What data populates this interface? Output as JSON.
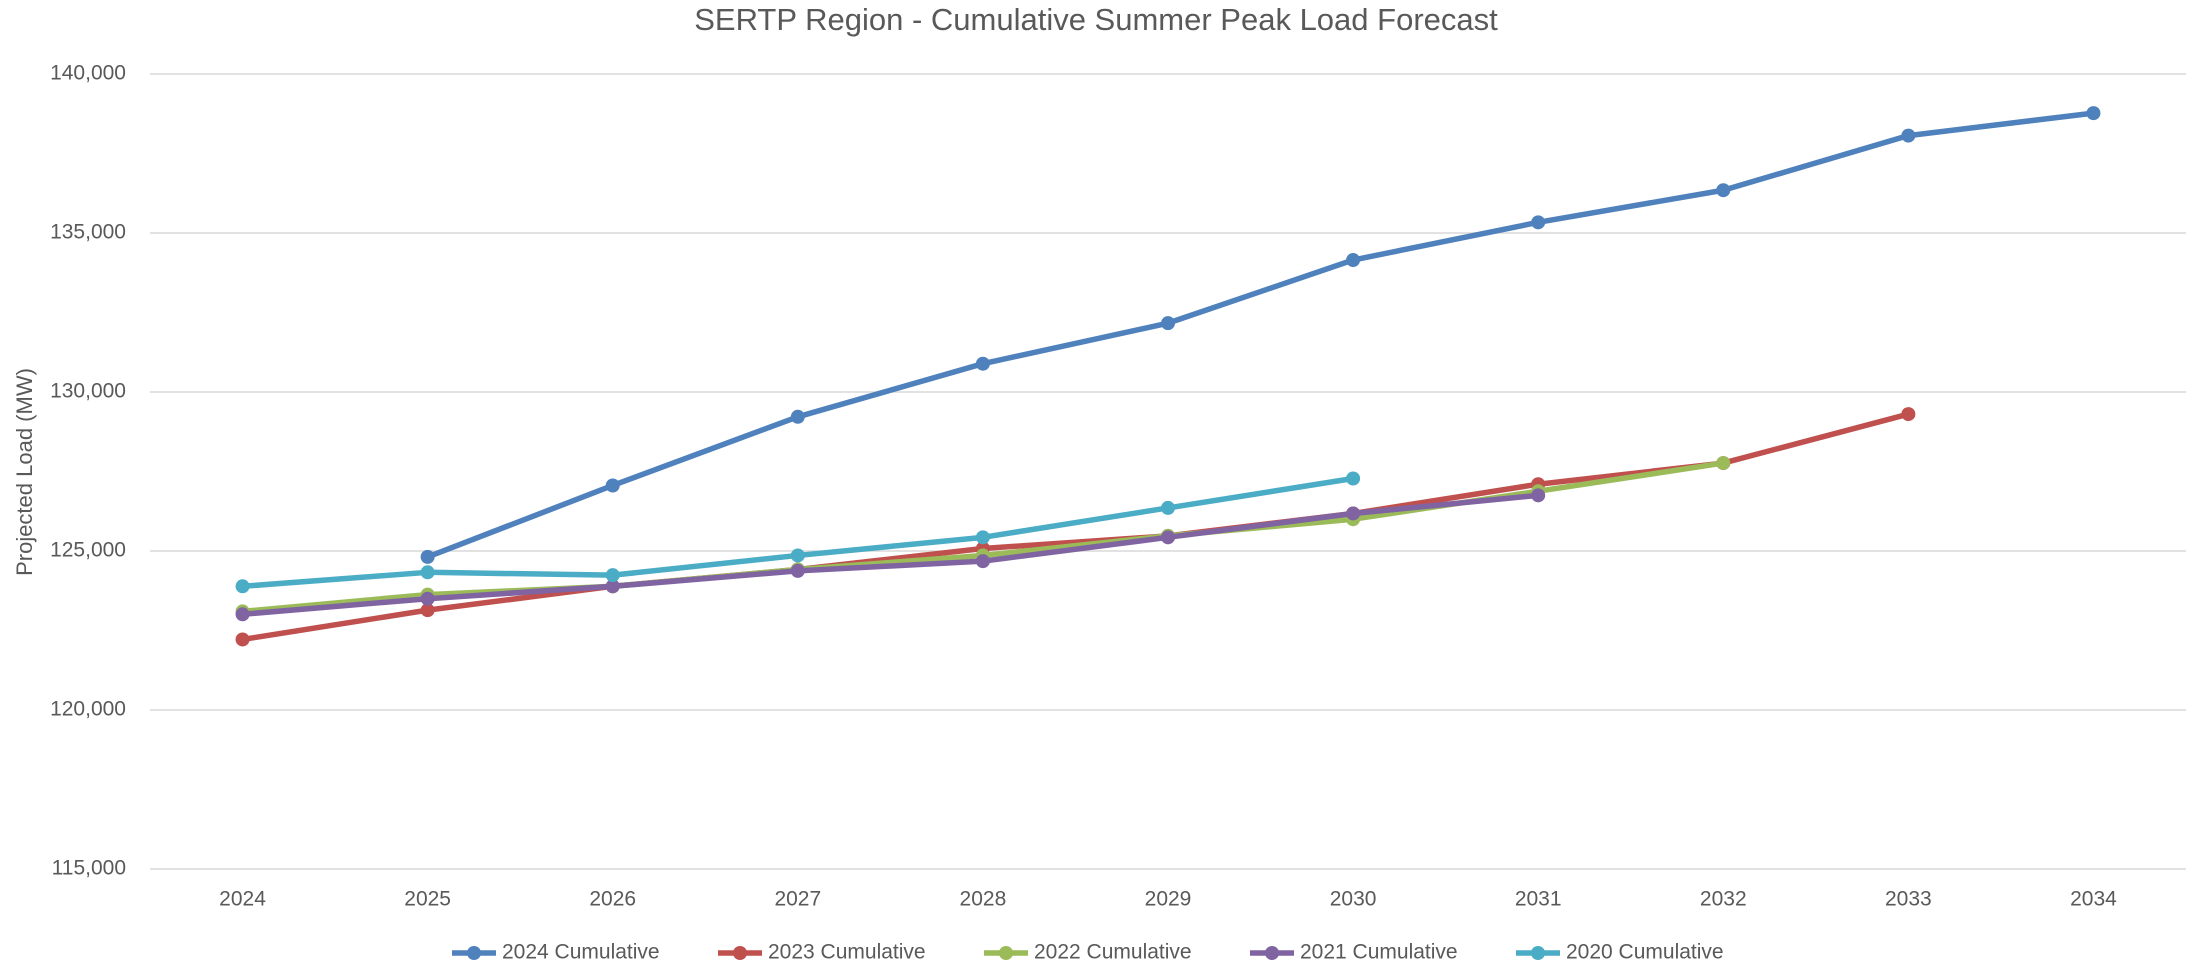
{
  "chart_data": {
    "type": "line",
    "title": "SERTP Region - Cumulative Summer Peak Load Forecast",
    "y_label": "Projected Load (MW)",
    "categories": [
      "2024",
      "2025",
      "2026",
      "2027",
      "2028",
      "2029",
      "2030",
      "2031",
      "2032",
      "2033",
      "2034"
    ],
    "series": [
      {
        "name": "2024 Cumulative",
        "color": "#4f81bd",
        "values": [
          null,
          124815,
          127060,
          129220,
          130890,
          132165,
          134150,
          135335,
          136345,
          138063,
          138770
        ]
      },
      {
        "name": "2023 Cumulative",
        "color": "#c0504d",
        "values": [
          122218,
          123140,
          123890,
          124420,
          125080,
          125475,
          126180,
          127100,
          127765,
          129305,
          null
        ]
      },
      {
        "name": "2022 Cumulative",
        "color": "#9bbb59",
        "values": [
          123100,
          123630,
          123890,
          124420,
          124860,
          125475,
          126000,
          126880,
          127765,
          null,
          null
        ]
      },
      {
        "name": "2021 Cumulative",
        "color": "#8064a2",
        "values": [
          123010,
          123500,
          123890,
          124375,
          124680,
          125430,
          126180,
          126750,
          null,
          null,
          null
        ]
      },
      {
        "name": "2020 Cumulative",
        "color": "#4bacc6",
        "values": [
          123890,
          124330,
          124240,
          124860,
          125430,
          126355,
          127280,
          null,
          null,
          null,
          null
        ]
      }
    ],
    "ylim": [
      115000,
      140000
    ],
    "yticks": [
      {
        "value": 115000,
        "label": "115,000"
      },
      {
        "value": 120000,
        "label": "120,000"
      },
      {
        "value": 125000,
        "label": "125,000"
      },
      {
        "value": 130000,
        "label": "130,000"
      },
      {
        "value": 135000,
        "label": "135,000"
      },
      {
        "value": 140000,
        "label": "140,000"
      }
    ],
    "grid": true,
    "legend": "bottom"
  }
}
